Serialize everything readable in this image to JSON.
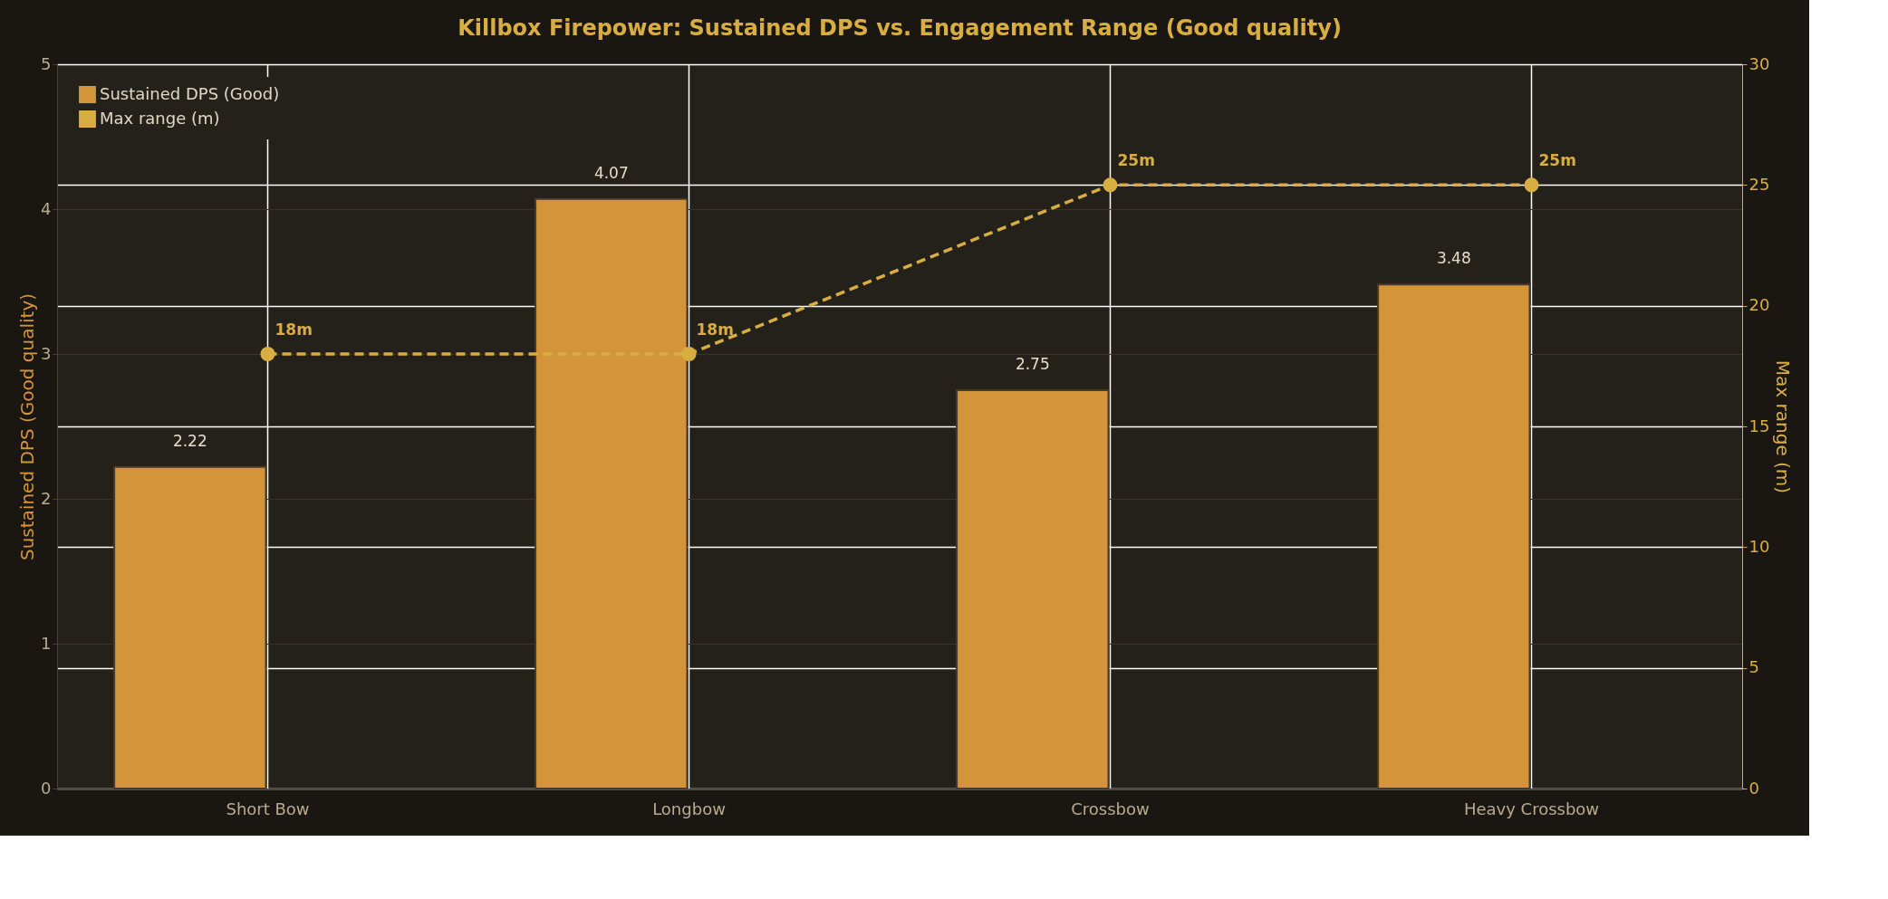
{
  "chart_data": {
    "type": "bar",
    "title": "Killbox Firepower: Sustained DPS vs. Engagement Range (Good quality)",
    "categories": [
      "Short Bow",
      "Longbow",
      "Crossbow",
      "Heavy Crossbow"
    ],
    "series": [
      {
        "name": "Sustained DPS (Good)",
        "color": "#d4953a",
        "values": [
          2.22,
          4.07,
          2.75,
          3.48
        ],
        "value_labels": [
          "2.22",
          "4.07",
          "2.75",
          "3.48"
        ]
      },
      {
        "name": "Max range (m)",
        "type": "line",
        "axis": "y2",
        "color": "#d8ae42",
        "values": [
          18,
          18,
          25,
          25
        ],
        "value_labels": [
          "18m",
          "18m",
          "25m",
          "25m"
        ],
        "marker": "circle",
        "line_style": "dashed"
      }
    ],
    "ylabel": "Sustained DPS (Good quality)",
    "y2label": "Max range (m)",
    "ylim": [
      0,
      5
    ],
    "yticks": [
      0,
      1,
      2,
      3,
      4,
      5
    ],
    "y2lim": [
      0,
      30
    ],
    "y2ticks": [
      0,
      5,
      10,
      15,
      20,
      25,
      30
    ],
    "grid": true,
    "legend": "top left"
  }
}
